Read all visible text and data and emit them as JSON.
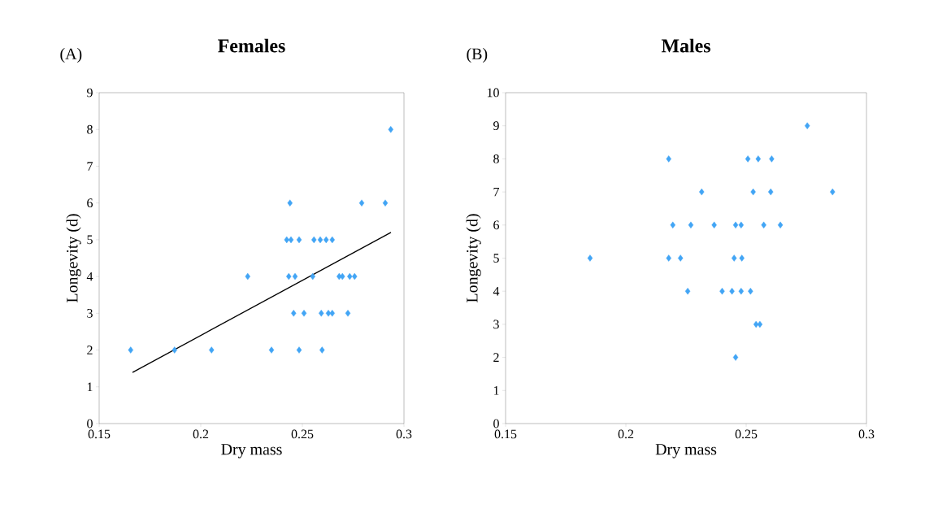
{
  "chart_data": [
    {
      "type": "scatter",
      "title": "Females",
      "xlabel": "Dry mass",
      "ylabel": "Longevity (d)",
      "annotations": [
        "(A)"
      ],
      "marker": "diamond",
      "grid": false,
      "legend": false,
      "xlim": [
        0.15,
        0.3
      ],
      "ylim": [
        0,
        9
      ],
      "xticks": [
        0.15,
        0.2,
        0.25,
        0.3
      ],
      "yticks": [
        0,
        1,
        2,
        3,
        4,
        5,
        6,
        7,
        8,
        9
      ],
      "series": [
        {
          "color": "#42a5f5",
          "x": [
            0.2935,
            0.2439,
            0.2792,
            0.2908,
            0.2423,
            0.2444,
            0.2484,
            0.2557,
            0.2588,
            0.2617,
            0.2647,
            0.2231,
            0.2433,
            0.2464,
            0.2551,
            0.2681,
            0.2697,
            0.2733,
            0.2757,
            0.2457,
            0.2508,
            0.2593,
            0.2628,
            0.2647,
            0.2724,
            0.1655,
            0.1871,
            0.2053,
            0.2348,
            0.2484,
            0.2597
          ],
          "values": [
            8,
            6,
            6,
            6,
            5,
            5,
            5,
            5,
            5,
            5,
            5,
            4,
            4,
            4,
            4,
            4,
            4,
            4,
            4,
            3,
            3,
            3,
            3,
            3,
            3,
            2,
            2,
            2,
            2,
            2,
            2
          ]
        },
        {
          "type": "line",
          "color": "#000000",
          "marker": "none",
          "x": [
            0.1664,
            0.2936
          ],
          "values": [
            1.39,
            5.2
          ]
        }
      ]
    },
    {
      "type": "scatter",
      "title": "Males",
      "xlabel": "Dry mass",
      "ylabel": "Longevity (d)",
      "annotations": [
        "(B)"
      ],
      "marker": "diamond",
      "grid": false,
      "legend": false,
      "xlim": [
        0.15,
        0.3
      ],
      "ylim": [
        0,
        10
      ],
      "xticks": [
        0.15,
        0.2,
        0.25,
        0.3
      ],
      "yticks": [
        0,
        1,
        2,
        3,
        4,
        5,
        6,
        7,
        8,
        9,
        10
      ],
      "series": [
        {
          "color": "#42a5f5",
          "x": [
            0.2754,
            0.2178,
            0.2507,
            0.255,
            0.2606,
            0.2315,
            0.2529,
            0.2602,
            0.2859,
            0.2195,
            0.227,
            0.2367,
            0.2456,
            0.2479,
            0.2573,
            0.2642,
            0.1851,
            0.2178,
            0.2227,
            0.245,
            0.2482,
            0.2257,
            0.24,
            0.2441,
            0.2479,
            0.2518,
            0.2541,
            0.2557,
            0.2456
          ],
          "values": [
            9,
            8,
            8,
            8,
            8,
            7,
            7,
            7,
            7,
            6,
            6,
            6,
            6,
            6,
            6,
            6,
            5,
            5,
            5,
            5,
            5,
            4,
            4,
            4,
            4,
            4,
            3,
            3,
            2
          ]
        }
      ]
    }
  ]
}
